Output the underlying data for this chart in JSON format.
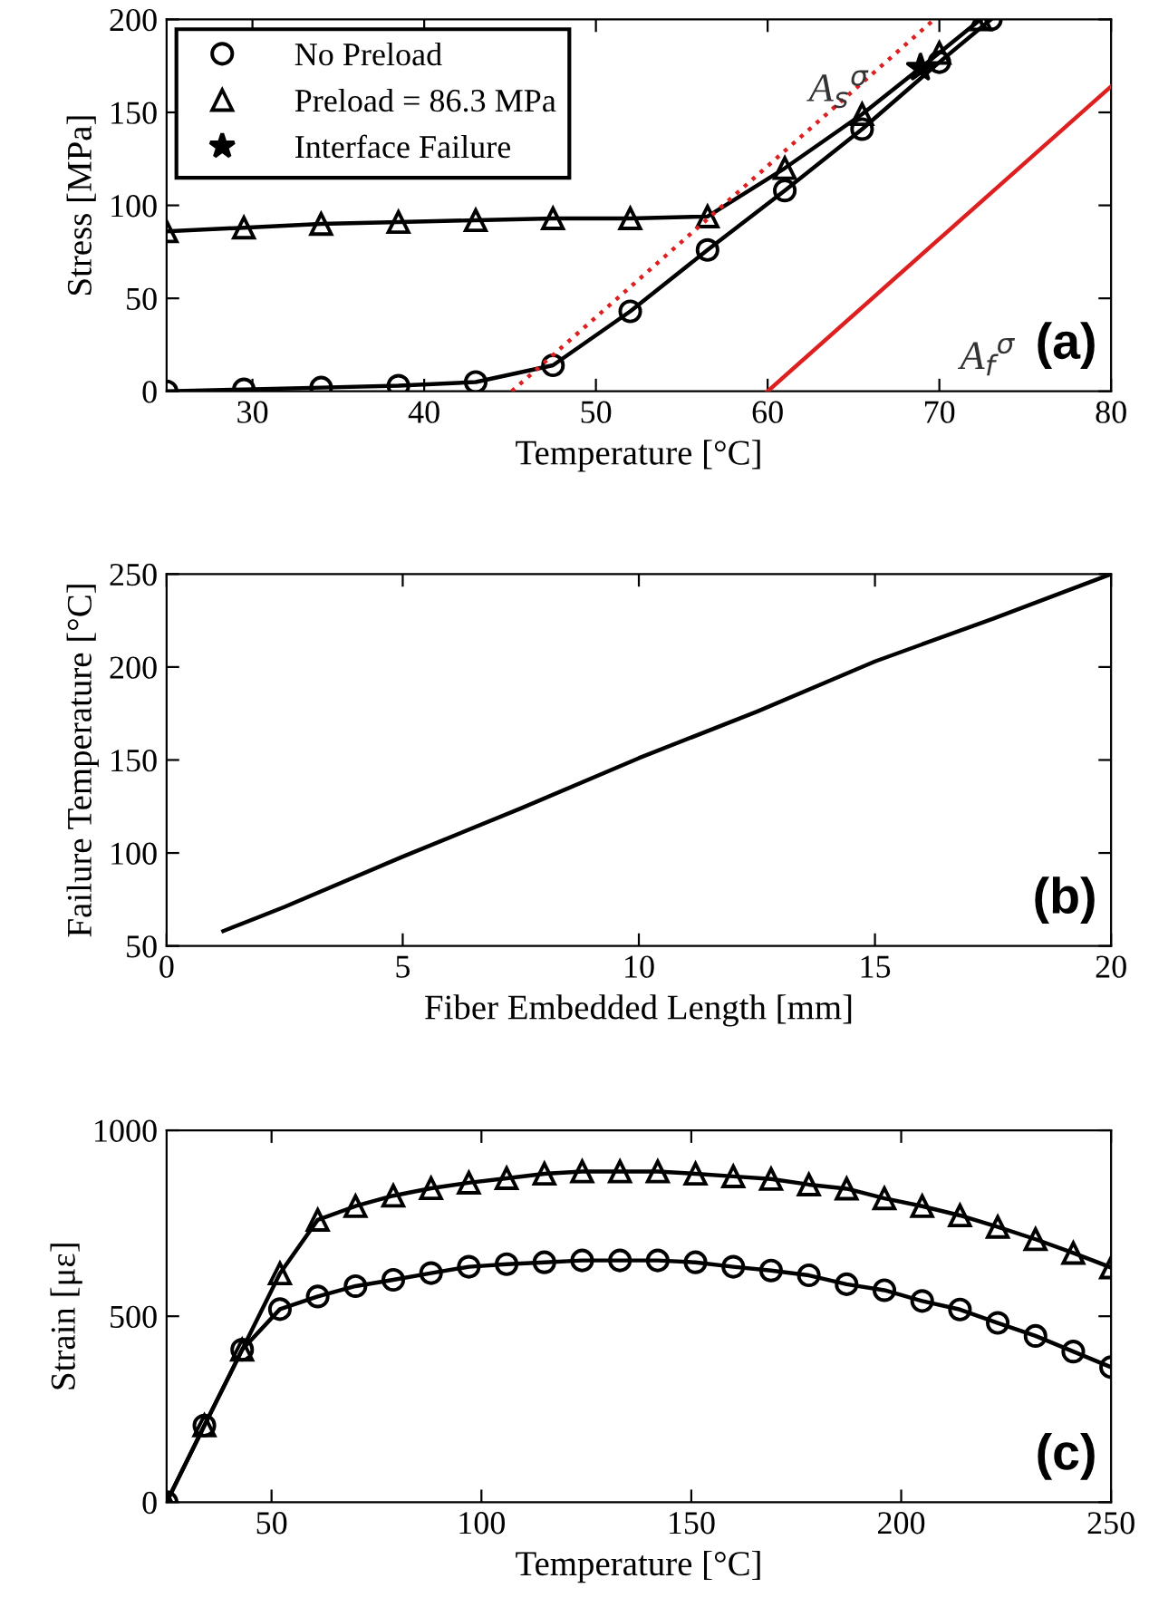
{
  "chart_data": [
    {
      "type": "line",
      "xlabel": "Temperature [°C]",
      "ylabel": "Stress [MPa]",
      "xlim": [
        25,
        80
      ],
      "ylim": [
        0,
        200
      ],
      "xticks": [
        30,
        40,
        50,
        60,
        70,
        80
      ],
      "yticks": [
        0,
        50,
        100,
        150,
        200
      ],
      "grid": false,
      "legend": "top left",
      "series": [
        {
          "name": "No Preload",
          "color": "#000000",
          "marker": "circle",
          "line_style": "solid",
          "x": [
            25,
            29.5,
            34,
            38.5,
            43,
            47.5,
            52,
            56.5,
            61,
            65.5,
            70,
            73
          ],
          "values": [
            0,
            1,
            2,
            3,
            5,
            14,
            43,
            76,
            108,
            141,
            177,
            200
          ]
        },
        {
          "name": "Preload = 86.3 MPa",
          "color": "#000000",
          "marker": "triangle",
          "line_style": "solid",
          "x": [
            25,
            29.5,
            34,
            38.5,
            43,
            47.5,
            52,
            56.5,
            61,
            65.5,
            70,
            72.4
          ],
          "values": [
            86,
            88,
            90,
            91,
            92,
            93,
            93,
            94,
            120,
            149,
            182,
            200
          ]
        },
        {
          "name": "Interface Failure",
          "type": "scatter",
          "color": "#000000",
          "marker": "star",
          "x": [
            68.9
          ],
          "values": [
            174
          ]
        },
        {
          "color": "#dd1f1f",
          "marker": "none",
          "line_style": "dotted",
          "x": [
            45.1,
            69.7
          ],
          "values": [
            0,
            200
          ]
        },
        {
          "color": "#dd1f1f",
          "marker": "none",
          "line_style": "solid",
          "x": [
            60,
            80
          ],
          "values": [
            0,
            164
          ]
        }
      ],
      "annotations": [
        "A$_{s}$$^{σ}$",
        "A$_{f}$$^{σ}$",
        "(a)"
      ]
    },
    {
      "type": "line",
      "xlabel": "Fiber Embedded Length [mm]",
      "ylabel": "Failure Temperature [°C]",
      "xlim": [
        0,
        20
      ],
      "ylim": [
        50,
        250
      ],
      "xticks": [
        0,
        5,
        10,
        15,
        20
      ],
      "yticks": [
        50,
        100,
        150,
        200,
        250
      ],
      "grid": false,
      "series": [
        {
          "color": "#000000",
          "marker": "none",
          "line_style": "solid",
          "x": [
            1.2,
            2.5,
            5,
            7.5,
            10,
            12.5,
            15,
            17.5,
            20
          ],
          "values": [
            58,
            71,
            98,
            124,
            151,
            176,
            203,
            226,
            250
          ]
        }
      ],
      "annotations": [
        "(b)"
      ]
    },
    {
      "type": "line",
      "xlabel": "Temperature [°C]",
      "ylabel": "Strain [με]",
      "xlim": [
        25,
        250
      ],
      "ylim": [
        0,
        1000
      ],
      "xticks": [
        50,
        100,
        150,
        200,
        250
      ],
      "yticks": [
        0,
        500,
        1000
      ],
      "grid": false,
      "series": [
        {
          "color": "#000000",
          "marker": "circle",
          "line_style": "solid",
          "x": [
            25,
            34,
            43,
            52,
            61,
            70,
            79,
            88,
            97,
            106,
            115,
            124,
            133,
            142,
            151,
            160,
            169,
            178,
            187,
            196,
            205,
            214,
            223,
            232,
            241,
            250
          ],
          "values": [
            0,
            206,
            410,
            519,
            553,
            581,
            598,
            616,
            633,
            640,
            645,
            650,
            650,
            650,
            645,
            633,
            623,
            610,
            586,
            570,
            541,
            518,
            482,
            447,
            405,
            363
          ]
        },
        {
          "color": "#000000",
          "marker": "triangle",
          "line_style": "solid",
          "x": [
            25,
            34,
            43,
            52,
            61,
            70,
            79,
            88,
            97,
            106,
            115,
            124,
            133,
            142,
            151,
            160,
            169,
            178,
            187,
            196,
            205,
            214,
            223,
            232,
            241,
            250
          ],
          "values": [
            0,
            206,
            410,
            615,
            759,
            796,
            824,
            844,
            859,
            871,
            883,
            889,
            889,
            889,
            883,
            876,
            869,
            854,
            843,
            817,
            796,
            771,
            740,
            707,
            670,
            631
          ]
        }
      ],
      "annotations": [
        "(c)"
      ]
    }
  ]
}
